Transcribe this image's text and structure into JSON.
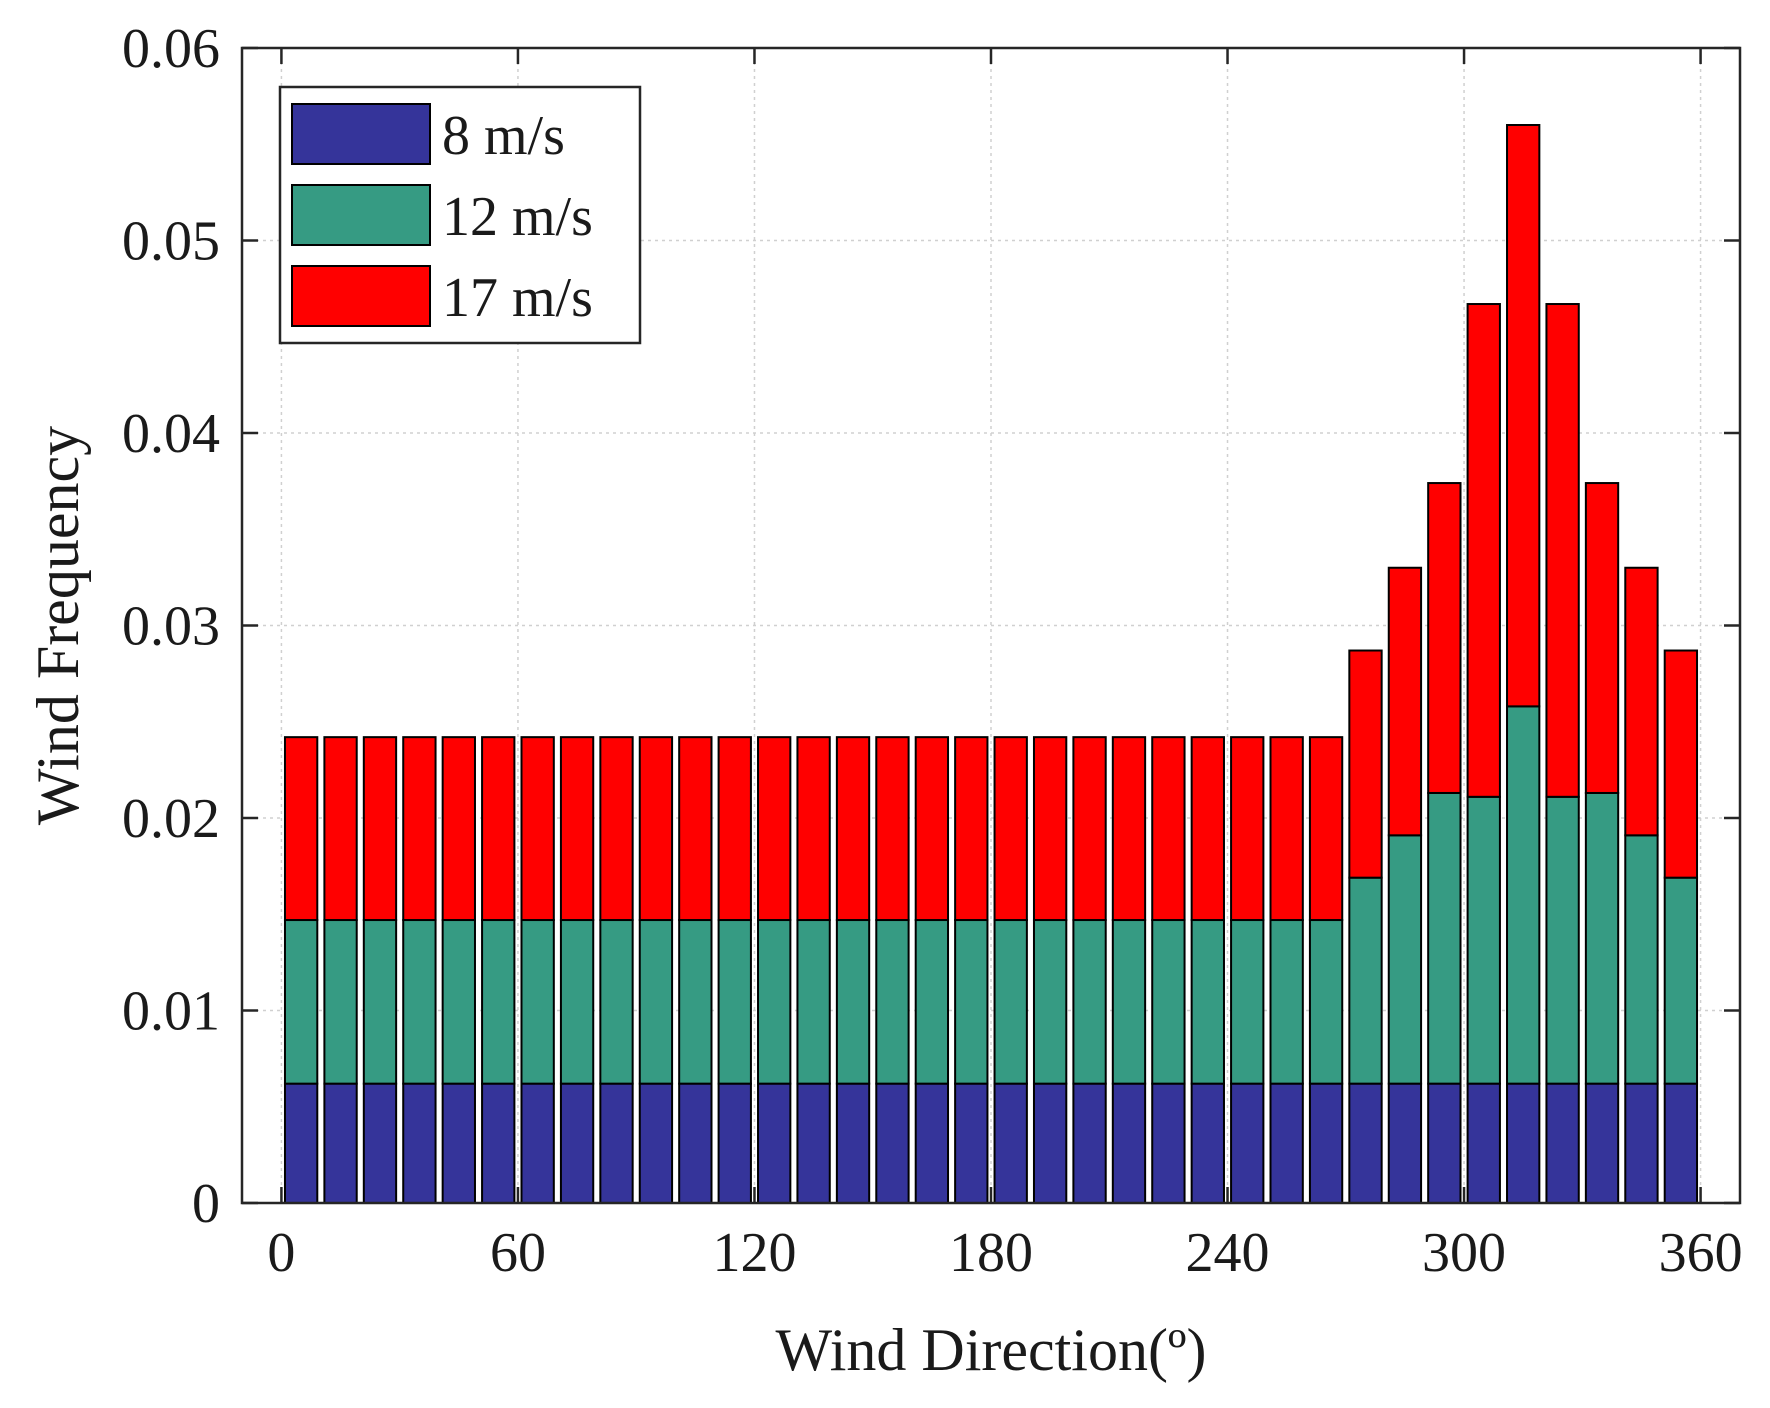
{
  "chart_data": {
    "type": "bar",
    "stacked": true,
    "title": "",
    "xlabel": "Wind Direction(º)",
    "ylabel": "Wind Frequency",
    "xlim": [
      -10,
      370
    ],
    "ylim": [
      0,
      0.06
    ],
    "xticks": [
      0,
      60,
      120,
      180,
      240,
      300,
      360
    ],
    "xtick_labels": [
      "0",
      "60",
      "120",
      "180",
      "240",
      "300",
      "360"
    ],
    "yticks": [
      0,
      0.01,
      0.02,
      0.03,
      0.04,
      0.05,
      0.06
    ],
    "ytick_labels": [
      "0",
      "0.01",
      "0.02",
      "0.03",
      "0.04",
      "0.05",
      "0.06"
    ],
    "grid": true,
    "legend_position": "top-left",
    "x": [
      5,
      15,
      25,
      35,
      45,
      55,
      65,
      75,
      85,
      95,
      105,
      115,
      125,
      135,
      145,
      155,
      165,
      175,
      185,
      195,
      205,
      215,
      225,
      235,
      245,
      255,
      265,
      275,
      285,
      295,
      305,
      315,
      325,
      335,
      345,
      355
    ],
    "series": [
      {
        "name": "8 m/s",
        "color": "#35349a",
        "values": [
          0.0062,
          0.0062,
          0.0062,
          0.0062,
          0.0062,
          0.0062,
          0.0062,
          0.0062,
          0.0062,
          0.0062,
          0.0062,
          0.0062,
          0.0062,
          0.0062,
          0.0062,
          0.0062,
          0.0062,
          0.0062,
          0.0062,
          0.0062,
          0.0062,
          0.0062,
          0.0062,
          0.0062,
          0.0062,
          0.0062,
          0.0062,
          0.0062,
          0.0062,
          0.0062,
          0.0062,
          0.0062,
          0.0062,
          0.0062,
          0.0062,
          0.0062
        ]
      },
      {
        "name": "12 m/s",
        "color": "#369b83",
        "values": [
          0.0085,
          0.0085,
          0.0085,
          0.0085,
          0.0085,
          0.0085,
          0.0085,
          0.0085,
          0.0085,
          0.0085,
          0.0085,
          0.0085,
          0.0085,
          0.0085,
          0.0085,
          0.0085,
          0.0085,
          0.0085,
          0.0085,
          0.0085,
          0.0085,
          0.0085,
          0.0085,
          0.0085,
          0.0085,
          0.0085,
          0.0085,
          0.0107,
          0.0129,
          0.0151,
          0.0149,
          0.0196,
          0.0149,
          0.0151,
          0.0129,
          0.0107
        ]
      },
      {
        "name": "17 m/s",
        "color": "#ff0000",
        "values": [
          0.0095,
          0.0095,
          0.0095,
          0.0095,
          0.0095,
          0.0095,
          0.0095,
          0.0095,
          0.0095,
          0.0095,
          0.0095,
          0.0095,
          0.0095,
          0.0095,
          0.0095,
          0.0095,
          0.0095,
          0.0095,
          0.0095,
          0.0095,
          0.0095,
          0.0095,
          0.0095,
          0.0095,
          0.0095,
          0.0095,
          0.0095,
          0.0118,
          0.0139,
          0.0161,
          0.0256,
          0.0302,
          0.0256,
          0.0161,
          0.0139,
          0.0118
        ]
      }
    ]
  }
}
